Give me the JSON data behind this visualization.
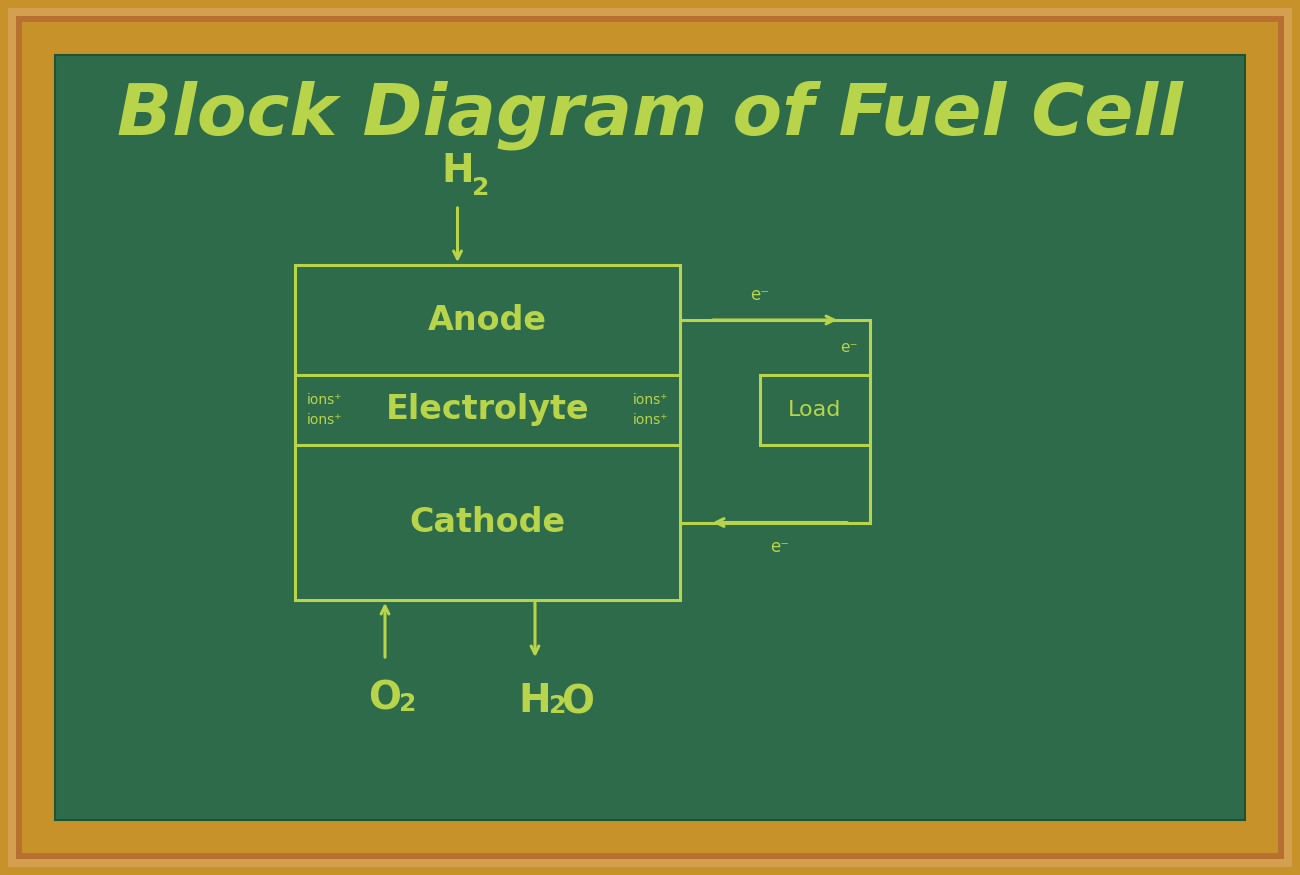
{
  "title": "Block Diagram of Fuel Cell",
  "title_color": "#b8d44a",
  "bg_color": "#2d6b4a",
  "board_outer_color1": "#c8922a",
  "board_outer_color2": "#a06820",
  "board_inner_light": "#d4a050",
  "text_color": "#b8d44a",
  "line_color": "#b8d44a",
  "anode_label": "Anode",
  "electrolyte_label": "Electrolyte",
  "cathode_label": "Cathode",
  "load_label": "Load",
  "h2_label": "H",
  "h2_sub": "2",
  "o2_label": "O",
  "o2_sub": "2",
  "h2o_label": "H",
  "h2o_sub": "2",
  "h2o_suffix": "O",
  "e_minus": "e⁻",
  "ions_plus": "ions⁺",
  "font_size_title": 52,
  "font_size_labels": 24,
  "font_size_small": 10,
  "font_size_chemical": 28,
  "font_size_load": 16
}
